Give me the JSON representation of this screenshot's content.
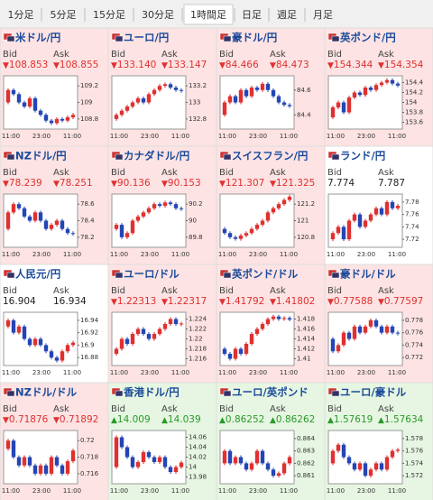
{
  "tabs": [
    "1分足",
    "5分足",
    "15分足",
    "30分足",
    "1時間足",
    "日足",
    "週足",
    "月足"
  ],
  "selected_tab": 4,
  "bid_label": "Bid",
  "ask_label": "Ask",
  "x_labels": [
    "11:00",
    "23:00",
    "11:00"
  ],
  "panels": [
    {
      "name": "米ドル/円",
      "bid": "108.853",
      "ask": "108.855",
      "arrow": "▼",
      "value_color": "#e03030",
      "background": "#fde3e3",
      "ylim": [
        108.7,
        109.3
      ],
      "yticks": [
        109.2,
        109,
        108.8
      ],
      "closes": [
        109.0,
        109.15,
        109.1,
        109.0,
        108.95,
        109.05,
        108.9,
        108.85,
        108.78,
        108.75,
        108.8,
        108.78,
        108.82,
        108.85
      ]
    },
    {
      "name": "ユーロ/円",
      "bid": "133.140",
      "ask": "133.147",
      "arrow": "▼",
      "value_color": "#e03030",
      "background": "#fde3e3",
      "ylim": [
        132.7,
        133.3
      ],
      "yticks": [
        133.2,
        133,
        132.8
      ],
      "closes": [
        132.8,
        132.85,
        132.9,
        132.95,
        133.0,
        133.05,
        133.0,
        133.1,
        133.15,
        133.2,
        133.22,
        133.18,
        133.15,
        133.14
      ]
    },
    {
      "name": "豪ドル/円",
      "bid": "84.466",
      "ask": "84.473",
      "arrow": "▼",
      "value_color": "#e03030",
      "background": "#fde3e3",
      "ylim": [
        84.3,
        84.7
      ],
      "yticks": [
        84.6,
        84.4
      ],
      "closes": [
        84.4,
        84.5,
        84.55,
        84.5,
        84.6,
        84.55,
        84.62,
        84.6,
        84.65,
        84.6,
        84.55,
        84.5,
        84.48,
        84.47
      ]
    },
    {
      "name": "英ポンド/円",
      "bid": "154.344",
      "ask": "154.354",
      "arrow": "▼",
      "value_color": "#e03030",
      "background": "#fde3e3",
      "ylim": [
        153.5,
        154.5
      ],
      "yticks": [
        154.4,
        154.2,
        154,
        153.8,
        153.6
      ],
      "closes": [
        153.7,
        153.9,
        154.0,
        153.8,
        154.1,
        154.2,
        154.15,
        154.3,
        154.25,
        154.35,
        154.4,
        154.45,
        154.38,
        154.34
      ]
    },
    {
      "name": "NZドル/円",
      "bid": "78.239",
      "ask": "78.251",
      "arrow": "▼",
      "value_color": "#e03030",
      "background": "#fde3e3",
      "ylim": [
        78.1,
        78.7
      ],
      "yticks": [
        78.6,
        78.4,
        78.2
      ],
      "closes": [
        78.3,
        78.5,
        78.6,
        78.55,
        78.45,
        78.4,
        78.5,
        78.4,
        78.3,
        78.35,
        78.4,
        78.3,
        78.25,
        78.24
      ]
    },
    {
      "name": "カナダドル/円",
      "bid": "90.136",
      "ask": "90.153",
      "arrow": "▼",
      "value_color": "#e03030",
      "background": "#fde3e3",
      "ylim": [
        89.7,
        90.3
      ],
      "yticks": [
        90.2,
        90,
        89.8
      ],
      "closes": [
        89.9,
        89.95,
        89.8,
        89.85,
        90.0,
        90.05,
        90.1,
        90.15,
        90.2,
        90.18,
        90.22,
        90.2,
        90.15,
        90.14
      ]
    },
    {
      "name": "スイスフラン/円",
      "bid": "121.307",
      "ask": "121.325",
      "arrow": "▼",
      "value_color": "#e03030",
      "background": "#fde3e3",
      "ylim": [
        120.7,
        121.3
      ],
      "yticks": [
        121.2,
        121,
        120.8
      ],
      "closes": [
        120.9,
        120.85,
        120.8,
        120.78,
        120.82,
        120.85,
        120.9,
        120.95,
        121.0,
        121.1,
        121.15,
        121.2,
        121.25,
        121.29
      ]
    },
    {
      "name": "ランド/円",
      "bid": "7.774",
      "ask": "7.787",
      "value_color": "#222222",
      "background": "#ffffff",
      "ylim": [
        7.71,
        7.79
      ],
      "yticks": [
        7.78,
        7.76,
        7.74,
        7.72
      ],
      "closes": [
        7.72,
        7.73,
        7.74,
        7.72,
        7.75,
        7.76,
        7.74,
        7.75,
        7.76,
        7.77,
        7.76,
        7.78,
        7.77,
        7.774
      ]
    },
    {
      "name": "人民元/円",
      "bid": "16.904",
      "ask": "16.934",
      "value_color": "#222222",
      "background": "#ffffff",
      "ylim": [
        16.87,
        16.95
      ],
      "yticks": [
        16.94,
        16.92,
        16.9,
        16.88
      ],
      "closes": [
        16.93,
        16.94,
        16.92,
        16.93,
        16.91,
        16.9,
        16.91,
        16.9,
        16.89,
        16.88,
        16.875,
        16.89,
        16.9,
        16.904
      ]
    },
    {
      "name": "ユーロ/ドル",
      "bid": "1.22313",
      "ask": "1.22317",
      "arrow": "▼",
      "value_color": "#e03030",
      "background": "#fde3e3",
      "ylim": [
        1.215,
        1.225
      ],
      "yticks": [
        1.224,
        1.222,
        1.22,
        1.218,
        1.216
      ],
      "closes": [
        1.217,
        1.218,
        1.22,
        1.219,
        1.221,
        1.222,
        1.221,
        1.22,
        1.221,
        1.222,
        1.223,
        1.224,
        1.223,
        1.2231
      ]
    },
    {
      "name": "英ポンド/ドル",
      "bid": "1.41792",
      "ask": "1.41802",
      "arrow": "▼",
      "value_color": "#e03030",
      "background": "#fde3e3",
      "ylim": [
        1.409,
        1.419
      ],
      "yticks": [
        1.418,
        1.416,
        1.414,
        1.412,
        1.41
      ],
      "closes": [
        1.412,
        1.411,
        1.41,
        1.412,
        1.411,
        1.413,
        1.415,
        1.416,
        1.417,
        1.418,
        1.4185,
        1.418,
        1.4182,
        1.4179
      ]
    },
    {
      "name": "豪ドル/ドル",
      "bid": "0.77588",
      "ask": "0.77597",
      "arrow": "▼",
      "value_color": "#e03030",
      "background": "#fde3e3",
      "ylim": [
        0.771,
        0.779
      ],
      "yticks": [
        0.778,
        0.776,
        0.774,
        0.772
      ],
      "closes": [
        0.775,
        0.773,
        0.774,
        0.776,
        0.775,
        0.777,
        0.776,
        0.777,
        0.778,
        0.777,
        0.776,
        0.777,
        0.776,
        0.7759
      ]
    },
    {
      "name": "NZドル/ドル",
      "bid": "0.71876",
      "ask": "0.71892",
      "arrow": "▼",
      "value_color": "#e03030",
      "background": "#fde3e3",
      "ylim": [
        0.715,
        0.721
      ],
      "yticks": [
        0.72,
        0.718,
        0.716
      ],
      "closes": [
        0.719,
        0.72,
        0.718,
        0.717,
        0.718,
        0.717,
        0.716,
        0.717,
        0.716,
        0.718,
        0.717,
        0.716,
        0.7175,
        0.7188
      ]
    },
    {
      "name": "香港ドル/円",
      "bid": "14.009",
      "ask": "14.039",
      "arrow": "▲",
      "value_color": "#2a9a2a",
      "background": "#e6f6e2",
      "ylim": [
        13.97,
        14.07
      ],
      "yticks": [
        14.06,
        14.04,
        14.02,
        14,
        13.98
      ],
      "closes": [
        14.0,
        14.06,
        14.04,
        14.02,
        14.0,
        14.01,
        14.03,
        14.02,
        14.01,
        14.02,
        14.0,
        13.99,
        14.0,
        14.009
      ]
    },
    {
      "name": "ユーロ/英ポンド",
      "bid": "0.86252",
      "ask": "0.86262",
      "arrow": "▲",
      "value_color": "#2a9a2a",
      "background": "#e6f6e2",
      "ylim": [
        0.8605,
        0.8645
      ],
      "yticks": [
        0.864,
        0.863,
        0.862,
        0.861
      ],
      "closes": [
        0.862,
        0.863,
        0.862,
        0.8625,
        0.862,
        0.8615,
        0.862,
        0.863,
        0.862,
        0.8615,
        0.861,
        0.8612,
        0.862,
        0.8625
      ]
    },
    {
      "name": "ユーロ/豪ドル",
      "bid": "1.57619",
      "ask": "1.57634",
      "arrow": "▲",
      "value_color": "#2a9a2a",
      "background": "#e6f6e2",
      "ylim": [
        1.571,
        1.579
      ],
      "yticks": [
        1.578,
        1.576,
        1.574,
        1.572
      ],
      "closes": [
        1.574,
        1.576,
        1.577,
        1.575,
        1.574,
        1.573,
        1.574,
        1.572,
        1.573,
        1.574,
        1.573,
        1.575,
        1.576,
        1.5762
      ]
    }
  ]
}
